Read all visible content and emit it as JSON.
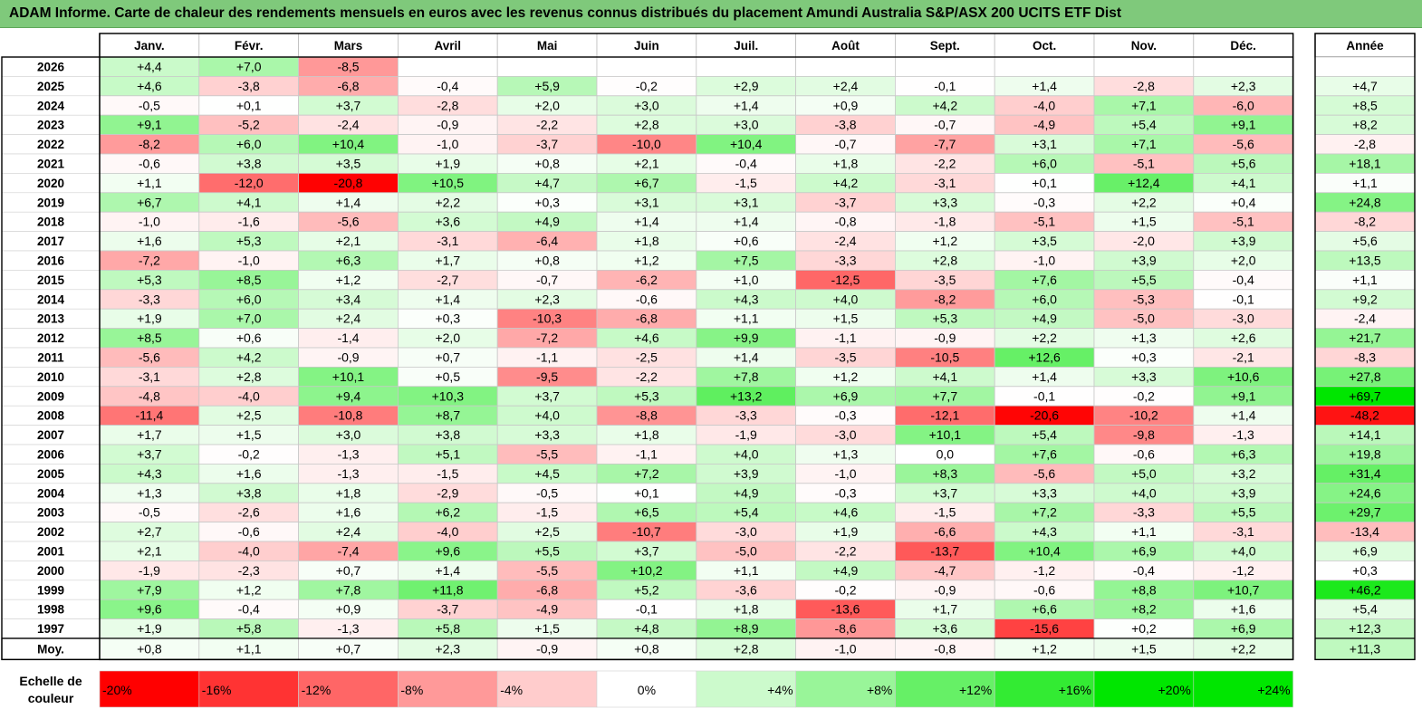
{
  "title": "ADAM Informe. Carte de chaleur des rendements mensuels en euros avec les revenus connus distribués du placement Amundi Australia S&P/ASX 200 UCITS ETF Dist",
  "chart_data": {
    "type": "heatmap",
    "months": [
      "Janv.",
      "Févr.",
      "Mars",
      "Avril",
      "Mai",
      "Juin",
      "Juil.",
      "Août",
      "Sept.",
      "Oct.",
      "Nov.",
      "Déc."
    ],
    "year_label": "Année",
    "avg_label": "Moy.",
    "rows": [
      {
        "year": "2026",
        "values": [
          "+4,4",
          "+7,0",
          "-8,5",
          "",
          "",
          "",
          "",
          "",
          "",
          "",
          "",
          ""
        ],
        "annual": ""
      },
      {
        "year": "2025",
        "values": [
          "+4,6",
          "-3,8",
          "-6,8",
          "-0,4",
          "+5,9",
          "-0,2",
          "+2,9",
          "+2,4",
          "-0,1",
          "+1,4",
          "-2,8",
          "+2,3"
        ],
        "annual": "+4,7"
      },
      {
        "year": "2024",
        "values": [
          "-0,5",
          "+0,1",
          "+3,7",
          "-2,8",
          "+2,0",
          "+3,0",
          "+1,4",
          "+0,9",
          "+4,2",
          "-4,0",
          "+7,1",
          "-6,0"
        ],
        "annual": "+8,5"
      },
      {
        "year": "2023",
        "values": [
          "+9,1",
          "-5,2",
          "-2,4",
          "-0,9",
          "-2,2",
          "+2,8",
          "+3,0",
          "-3,8",
          "-0,7",
          "-4,9",
          "+5,4",
          "+9,1"
        ],
        "annual": "+8,2"
      },
      {
        "year": "2022",
        "values": [
          "-8,2",
          "+6,0",
          "+10,4",
          "-1,0",
          "-3,7",
          "-10,0",
          "+10,4",
          "-0,7",
          "-7,7",
          "+3,1",
          "+7,1",
          "-5,6"
        ],
        "annual": "-2,8"
      },
      {
        "year": "2021",
        "values": [
          "-0,6",
          "+3,8",
          "+3,5",
          "+1,9",
          "+0,8",
          "+2,1",
          "-0,4",
          "+1,8",
          "-2,2",
          "+6,0",
          "-5,1",
          "+5,6"
        ],
        "annual": "+18,1"
      },
      {
        "year": "2020",
        "values": [
          "+1,1",
          "-12,0",
          "-20,8",
          "+10,5",
          "+4,7",
          "+6,7",
          "-1,5",
          "+4,2",
          "-3,1",
          "+0,1",
          "+12,4",
          "+4,1"
        ],
        "annual": "+1,1"
      },
      {
        "year": "2019",
        "values": [
          "+6,7",
          "+4,1",
          "+1,4",
          "+2,2",
          "+0,3",
          "+3,1",
          "+3,1",
          "-3,7",
          "+3,3",
          "-0,3",
          "+2,2",
          "+0,4"
        ],
        "annual": "+24,8"
      },
      {
        "year": "2018",
        "values": [
          "-1,0",
          "-1,6",
          "-5,6",
          "+3,6",
          "+4,9",
          "+1,4",
          "+1,4",
          "-0,8",
          "-1,8",
          "-5,1",
          "+1,5",
          "-5,1"
        ],
        "annual": "-8,2"
      },
      {
        "year": "2017",
        "values": [
          "+1,6",
          "+5,3",
          "+2,1",
          "-3,1",
          "-6,4",
          "+1,8",
          "+0,6",
          "-2,4",
          "+1,2",
          "+3,5",
          "-2,0",
          "+3,9"
        ],
        "annual": "+5,6"
      },
      {
        "year": "2016",
        "values": [
          "-7,2",
          "-1,0",
          "+6,3",
          "+1,7",
          "+0,8",
          "+1,2",
          "+7,5",
          "-3,3",
          "+2,8",
          "-1,0",
          "+3,9",
          "+2,0"
        ],
        "annual": "+13,5"
      },
      {
        "year": "2015",
        "values": [
          "+5,3",
          "+8,5",
          "+1,2",
          "-2,7",
          "-0,7",
          "-6,2",
          "+1,0",
          "-12,5",
          "-3,5",
          "+7,6",
          "+5,5",
          "-0,4"
        ],
        "annual": "+1,1"
      },
      {
        "year": "2014",
        "values": [
          "-3,3",
          "+6,0",
          "+3,4",
          "+1,4",
          "+2,3",
          "-0,6",
          "+4,3",
          "+4,0",
          "-8,2",
          "+6,0",
          "-5,3",
          "-0,1"
        ],
        "annual": "+9,2"
      },
      {
        "year": "2013",
        "values": [
          "+1,9",
          "+7,0",
          "+2,4",
          "+0,3",
          "-10,3",
          "-6,8",
          "+1,1",
          "+1,5",
          "+5,3",
          "+4,9",
          "-5,0",
          "-3,0"
        ],
        "annual": "-2,4"
      },
      {
        "year": "2012",
        "values": [
          "+8,5",
          "+0,6",
          "-1,4",
          "+2,0",
          "-7,2",
          "+4,6",
          "+9,9",
          "-1,1",
          "-0,9",
          "+2,2",
          "+1,3",
          "+2,6"
        ],
        "annual": "+21,7"
      },
      {
        "year": "2011",
        "values": [
          "-5,6",
          "+4,2",
          "-0,9",
          "+0,7",
          "-1,1",
          "-2,5",
          "+1,4",
          "-3,5",
          "-10,5",
          "+12,6",
          "+0,3",
          "-2,1"
        ],
        "annual": "-8,3"
      },
      {
        "year": "2010",
        "values": [
          "-3,1",
          "+2,8",
          "+10,1",
          "+0,5",
          "-9,5",
          "-2,2",
          "+7,8",
          "+1,2",
          "+4,1",
          "+1,4",
          "+3,3",
          "+10,6"
        ],
        "annual": "+27,8"
      },
      {
        "year": "2009",
        "values": [
          "-4,8",
          "-4,0",
          "+9,4",
          "+10,3",
          "+3,7",
          "+5,3",
          "+13,2",
          "+6,9",
          "+7,7",
          "-0,1",
          "-0,2",
          "+9,1"
        ],
        "annual": "+69,7"
      },
      {
        "year": "2008",
        "values": [
          "-11,4",
          "+2,5",
          "-10,8",
          "+8,7",
          "+4,0",
          "-8,8",
          "-3,3",
          "-0,3",
          "-12,1",
          "-20,6",
          "-10,2",
          "+1,4"
        ],
        "annual": "-48,2"
      },
      {
        "year": "2007",
        "values": [
          "+1,7",
          "+1,5",
          "+3,0",
          "+3,8",
          "+3,3",
          "+1,8",
          "-1,9",
          "-3,0",
          "+10,1",
          "+5,4",
          "-9,8",
          "-1,3"
        ],
        "annual": "+14,1"
      },
      {
        "year": "2006",
        "values": [
          "+3,7",
          "-0,2",
          "-1,3",
          "+5,1",
          "-5,5",
          "-1,1",
          "+4,0",
          "+1,3",
          "0,0",
          "+7,6",
          "-0,6",
          "+6,3"
        ],
        "annual": "+19,8"
      },
      {
        "year": "2005",
        "values": [
          "+4,3",
          "+1,6",
          "-1,3",
          "-1,5",
          "+4,5",
          "+7,2",
          "+3,9",
          "-1,0",
          "+8,3",
          "-5,6",
          "+5,0",
          "+3,2"
        ],
        "annual": "+31,4"
      },
      {
        "year": "2004",
        "values": [
          "+1,3",
          "+3,8",
          "+1,8",
          "-2,9",
          "-0,5",
          "+0,1",
          "+4,9",
          "-0,3",
          "+3,7",
          "+3,3",
          "+4,0",
          "+3,9"
        ],
        "annual": "+24,6"
      },
      {
        "year": "2003",
        "values": [
          "-0,5",
          "-2,6",
          "+1,6",
          "+6,2",
          "-1,5",
          "+6,5",
          "+5,4",
          "+4,6",
          "-1,5",
          "+7,2",
          "-3,3",
          "+5,5"
        ],
        "annual": "+29,7"
      },
      {
        "year": "2002",
        "values": [
          "+2,7",
          "-0,6",
          "+2,4",
          "-4,0",
          "+2,5",
          "-10,7",
          "-3,0",
          "+1,9",
          "-6,6",
          "+4,3",
          "+1,1",
          "-3,1"
        ],
        "annual": "-13,4"
      },
      {
        "year": "2001",
        "values": [
          "+2,1",
          "-4,0",
          "-7,4",
          "+9,6",
          "+5,5",
          "+3,7",
          "-5,0",
          "-2,2",
          "-13,7",
          "+10,4",
          "+6,9",
          "+4,0"
        ],
        "annual": "+6,9"
      },
      {
        "year": "2000",
        "values": [
          "-1,9",
          "-2,3",
          "+0,7",
          "+1,4",
          "-5,5",
          "+10,2",
          "+1,1",
          "+4,9",
          "-4,7",
          "-1,2",
          "-0,4",
          "-1,2"
        ],
        "annual": "+0,3"
      },
      {
        "year": "1999",
        "values": [
          "+7,9",
          "+1,2",
          "+7,8",
          "+11,8",
          "-6,8",
          "+5,2",
          "-3,6",
          "-0,2",
          "-0,9",
          "-0,6",
          "+8,8",
          "+10,7"
        ],
        "annual": "+46,2"
      },
      {
        "year": "1998",
        "values": [
          "+9,6",
          "-0,4",
          "+0,9",
          "-3,7",
          "-4,9",
          "-0,1",
          "+1,8",
          "-13,6",
          "+1,7",
          "+6,6",
          "+8,2",
          "+1,6"
        ],
        "annual": "+5,4"
      },
      {
        "year": "1997",
        "values": [
          "+1,9",
          "+5,8",
          "-1,3",
          "+5,8",
          "+1,5",
          "+4,8",
          "+8,9",
          "-8,6",
          "+3,6",
          "-15,6",
          "+0,2",
          "+6,9"
        ],
        "annual": "+12,3"
      }
    ],
    "averages": [
      "+0,8",
      "+1,1",
      "+0,7",
      "+2,3",
      "-0,9",
      "+0,8",
      "+2,8",
      "-1,0",
      "-0,8",
      "+1,2",
      "+1,5",
      "+2,2"
    ],
    "average_annual": "+11,3",
    "scale_label": [
      "Echelle de",
      "couleur"
    ],
    "scale": [
      "-20%",
      "-16%",
      "-12%",
      "-8%",
      "-4%",
      "0%",
      "+4%",
      "+8%",
      "+12%",
      "+16%",
      "+20%",
      "+24%"
    ],
    "scale_values": [
      -20,
      -16,
      -12,
      -8,
      -4,
      0,
      4,
      8,
      12,
      16,
      20,
      24
    ],
    "colors": {
      "negative": "#ff0000",
      "positive": "#00e600",
      "neutral": "#ffffff",
      "header": "#7fc97b"
    }
  }
}
